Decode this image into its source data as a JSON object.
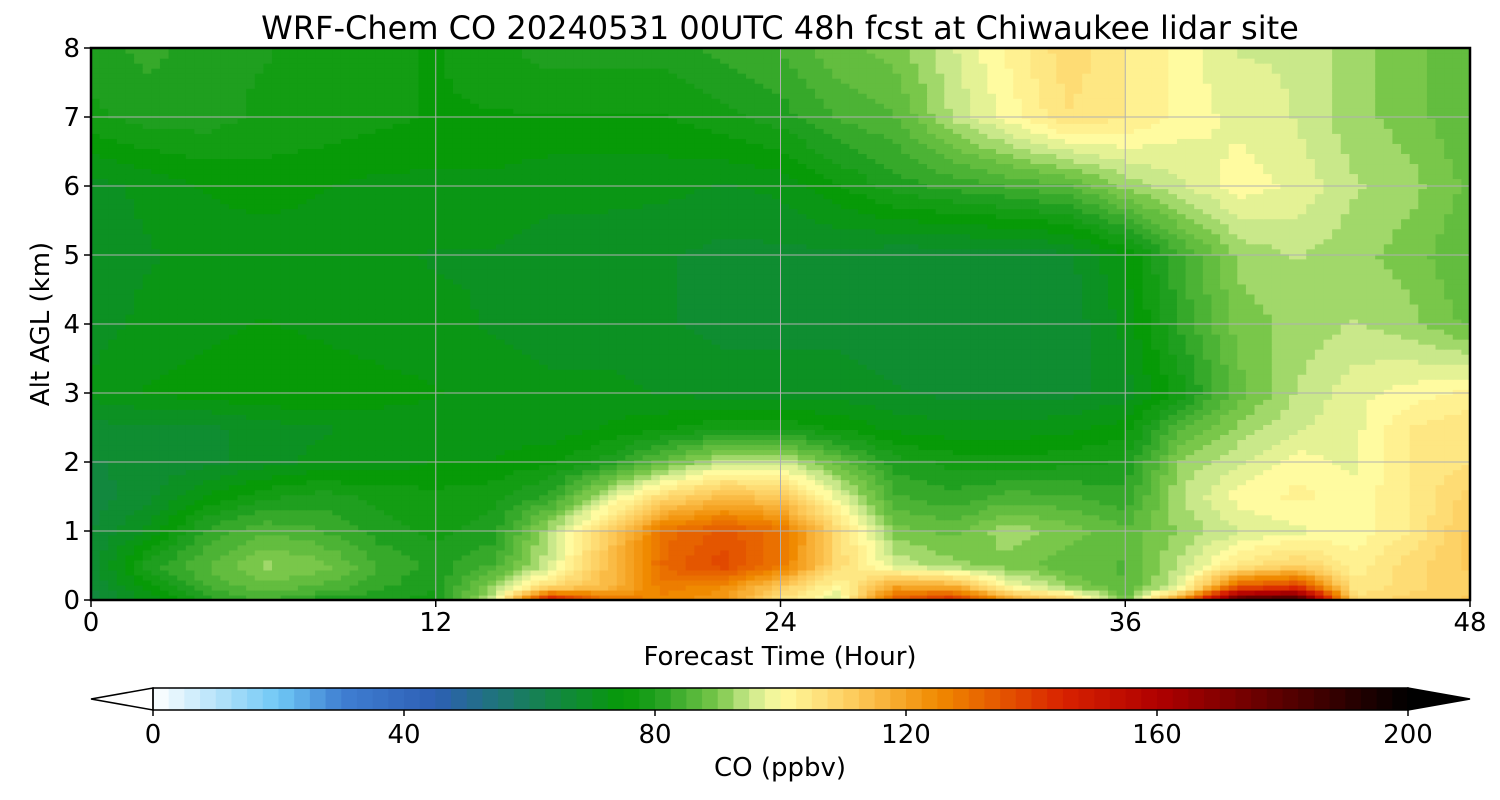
{
  "chart_data": {
    "type": "heatmap",
    "title": "WRF-Chem CO  20240531 00UTC 48h fcst at Chiwaukee lidar site",
    "xlabel": "Forecast Time (Hour)",
    "ylabel": "Alt AGL (km)",
    "xlim": [
      0,
      48
    ],
    "ylim": [
      0,
      8
    ],
    "x_ticks": [
      "0",
      "12",
      "24",
      "36",
      "48"
    ],
    "y_ticks": [
      "0",
      "1",
      "2",
      "3",
      "4",
      "5",
      "6",
      "7",
      "8"
    ],
    "grid": true,
    "colorbar": {
      "label": "CO  (ppbv)",
      "range": [
        0,
        200
      ],
      "ticks": [
        "0",
        "40",
        "80",
        "120",
        "160",
        "200"
      ],
      "extend": "both",
      "stops": [
        {
          "value": 0,
          "color": "#ffffff"
        },
        {
          "value": 20,
          "color": "#6fc8f5"
        },
        {
          "value": 30,
          "color": "#3f7fd2"
        },
        {
          "value": 45,
          "color": "#2d5fb5"
        },
        {
          "value": 60,
          "color": "#177f5a"
        },
        {
          "value": 75,
          "color": "#079a07"
        },
        {
          "value": 80,
          "color": "#1f9f1f"
        },
        {
          "value": 90,
          "color": "#79c74a"
        },
        {
          "value": 95,
          "color": "#c9e88a"
        },
        {
          "value": 100,
          "color": "#fffba0"
        },
        {
          "value": 112,
          "color": "#fdca5a"
        },
        {
          "value": 125,
          "color": "#f08a00"
        },
        {
          "value": 145,
          "color": "#d82200"
        },
        {
          "value": 160,
          "color": "#b00000"
        },
        {
          "value": 180,
          "color": "#5a0000"
        },
        {
          "value": 200,
          "color": "#000000"
        }
      ]
    },
    "field": {
      "hours": [
        0,
        2,
        4,
        6,
        8,
        10,
        12,
        14,
        16,
        18,
        20,
        22,
        24,
        26,
        28,
        30,
        32,
        34,
        36,
        38,
        40,
        42,
        44,
        46,
        48
      ],
      "altitudes_km": [
        0,
        0.2,
        0.5,
        1,
        1.5,
        2,
        2.5,
        3,
        4,
        5,
        6,
        7,
        8
      ],
      "co_ppbv": [
        [
          65,
          72,
          80,
          84,
          80,
          79,
          78,
          95,
          150,
          130,
          125,
          122,
          105,
          96,
          135,
          145,
          120,
          110,
          88,
          125,
          185,
          190,
          108,
          110,
          112
        ],
        [
          66,
          75,
          84,
          88,
          86,
          82,
          79,
          92,
          108,
          115,
          128,
          124,
          112,
          100,
          120,
          118,
          100,
          92,
          86,
          98,
          135,
          140,
          104,
          108,
          110
        ],
        [
          67,
          80,
          86,
          92,
          90,
          84,
          80,
          84,
          96,
          115,
          132,
          138,
          128,
          108,
          96,
          92,
          90,
          87,
          86,
          95,
          105,
          110,
          102,
          108,
          112
        ],
        [
          66,
          72,
          82,
          86,
          84,
          80,
          78,
          80,
          94,
          110,
          130,
          135,
          130,
          108,
          90,
          88,
          93,
          90,
          87,
          92,
          96,
          98,
          100,
          104,
          112
        ],
        [
          65,
          68,
          74,
          78,
          80,
          78,
          77,
          78,
          82,
          96,
          108,
          115,
          112,
          98,
          84,
          82,
          85,
          84,
          82,
          94,
          100,
          102,
          100,
          104,
          110
        ],
        [
          66,
          67,
          68,
          70,
          72,
          72,
          74,
          74,
          76,
          80,
          88,
          95,
          96,
          88,
          80,
          78,
          77,
          78,
          79,
          92,
          96,
          100,
          98,
          104,
          106
        ],
        [
          68,
          68,
          68,
          70,
          71,
          72,
          72,
          72,
          72,
          74,
          76,
          78,
          78,
          76,
          73,
          72,
          72,
          73,
          75,
          86,
          92,
          96,
          98,
          104,
          106
        ],
        [
          72,
          74,
          75,
          76,
          76,
          75,
          74,
          73,
          72,
          72,
          71,
          70,
          70,
          70,
          69,
          68,
          68,
          68,
          70,
          78,
          88,
          94,
          98,
          100,
          102
        ],
        [
          70,
          72,
          73,
          74,
          73,
          72,
          72,
          71,
          70,
          70,
          69,
          68,
          68,
          68,
          67,
          67,
          67,
          67,
          72,
          82,
          90,
          92,
          94,
          92,
          88
        ],
        [
          70,
          71,
          72,
          72,
          72,
          72,
          71,
          71,
          70,
          70,
          69,
          68,
          68,
          68,
          67,
          67,
          67,
          68,
          74,
          84,
          92,
          94,
          92,
          90,
          86
        ],
        [
          70,
          72,
          74,
          75,
          74,
          73,
          73,
          73,
          72,
          72,
          72,
          71,
          72,
          76,
          80,
          82,
          84,
          86,
          92,
          96,
          100,
          98,
          94,
          92,
          88
        ],
        [
          78,
          80,
          80,
          78,
          78,
          77,
          76,
          76,
          76,
          76,
          76,
          78,
          80,
          84,
          86,
          94,
          100,
          106,
          104,
          100,
          98,
          96,
          92,
          90,
          86
        ],
        [
          80,
          82,
          80,
          79,
          78,
          77,
          76,
          78,
          80,
          80,
          80,
          82,
          84,
          88,
          90,
          96,
          102,
          108,
          104,
          100,
          96,
          96,
          92,
          90,
          86
        ]
      ]
    }
  }
}
